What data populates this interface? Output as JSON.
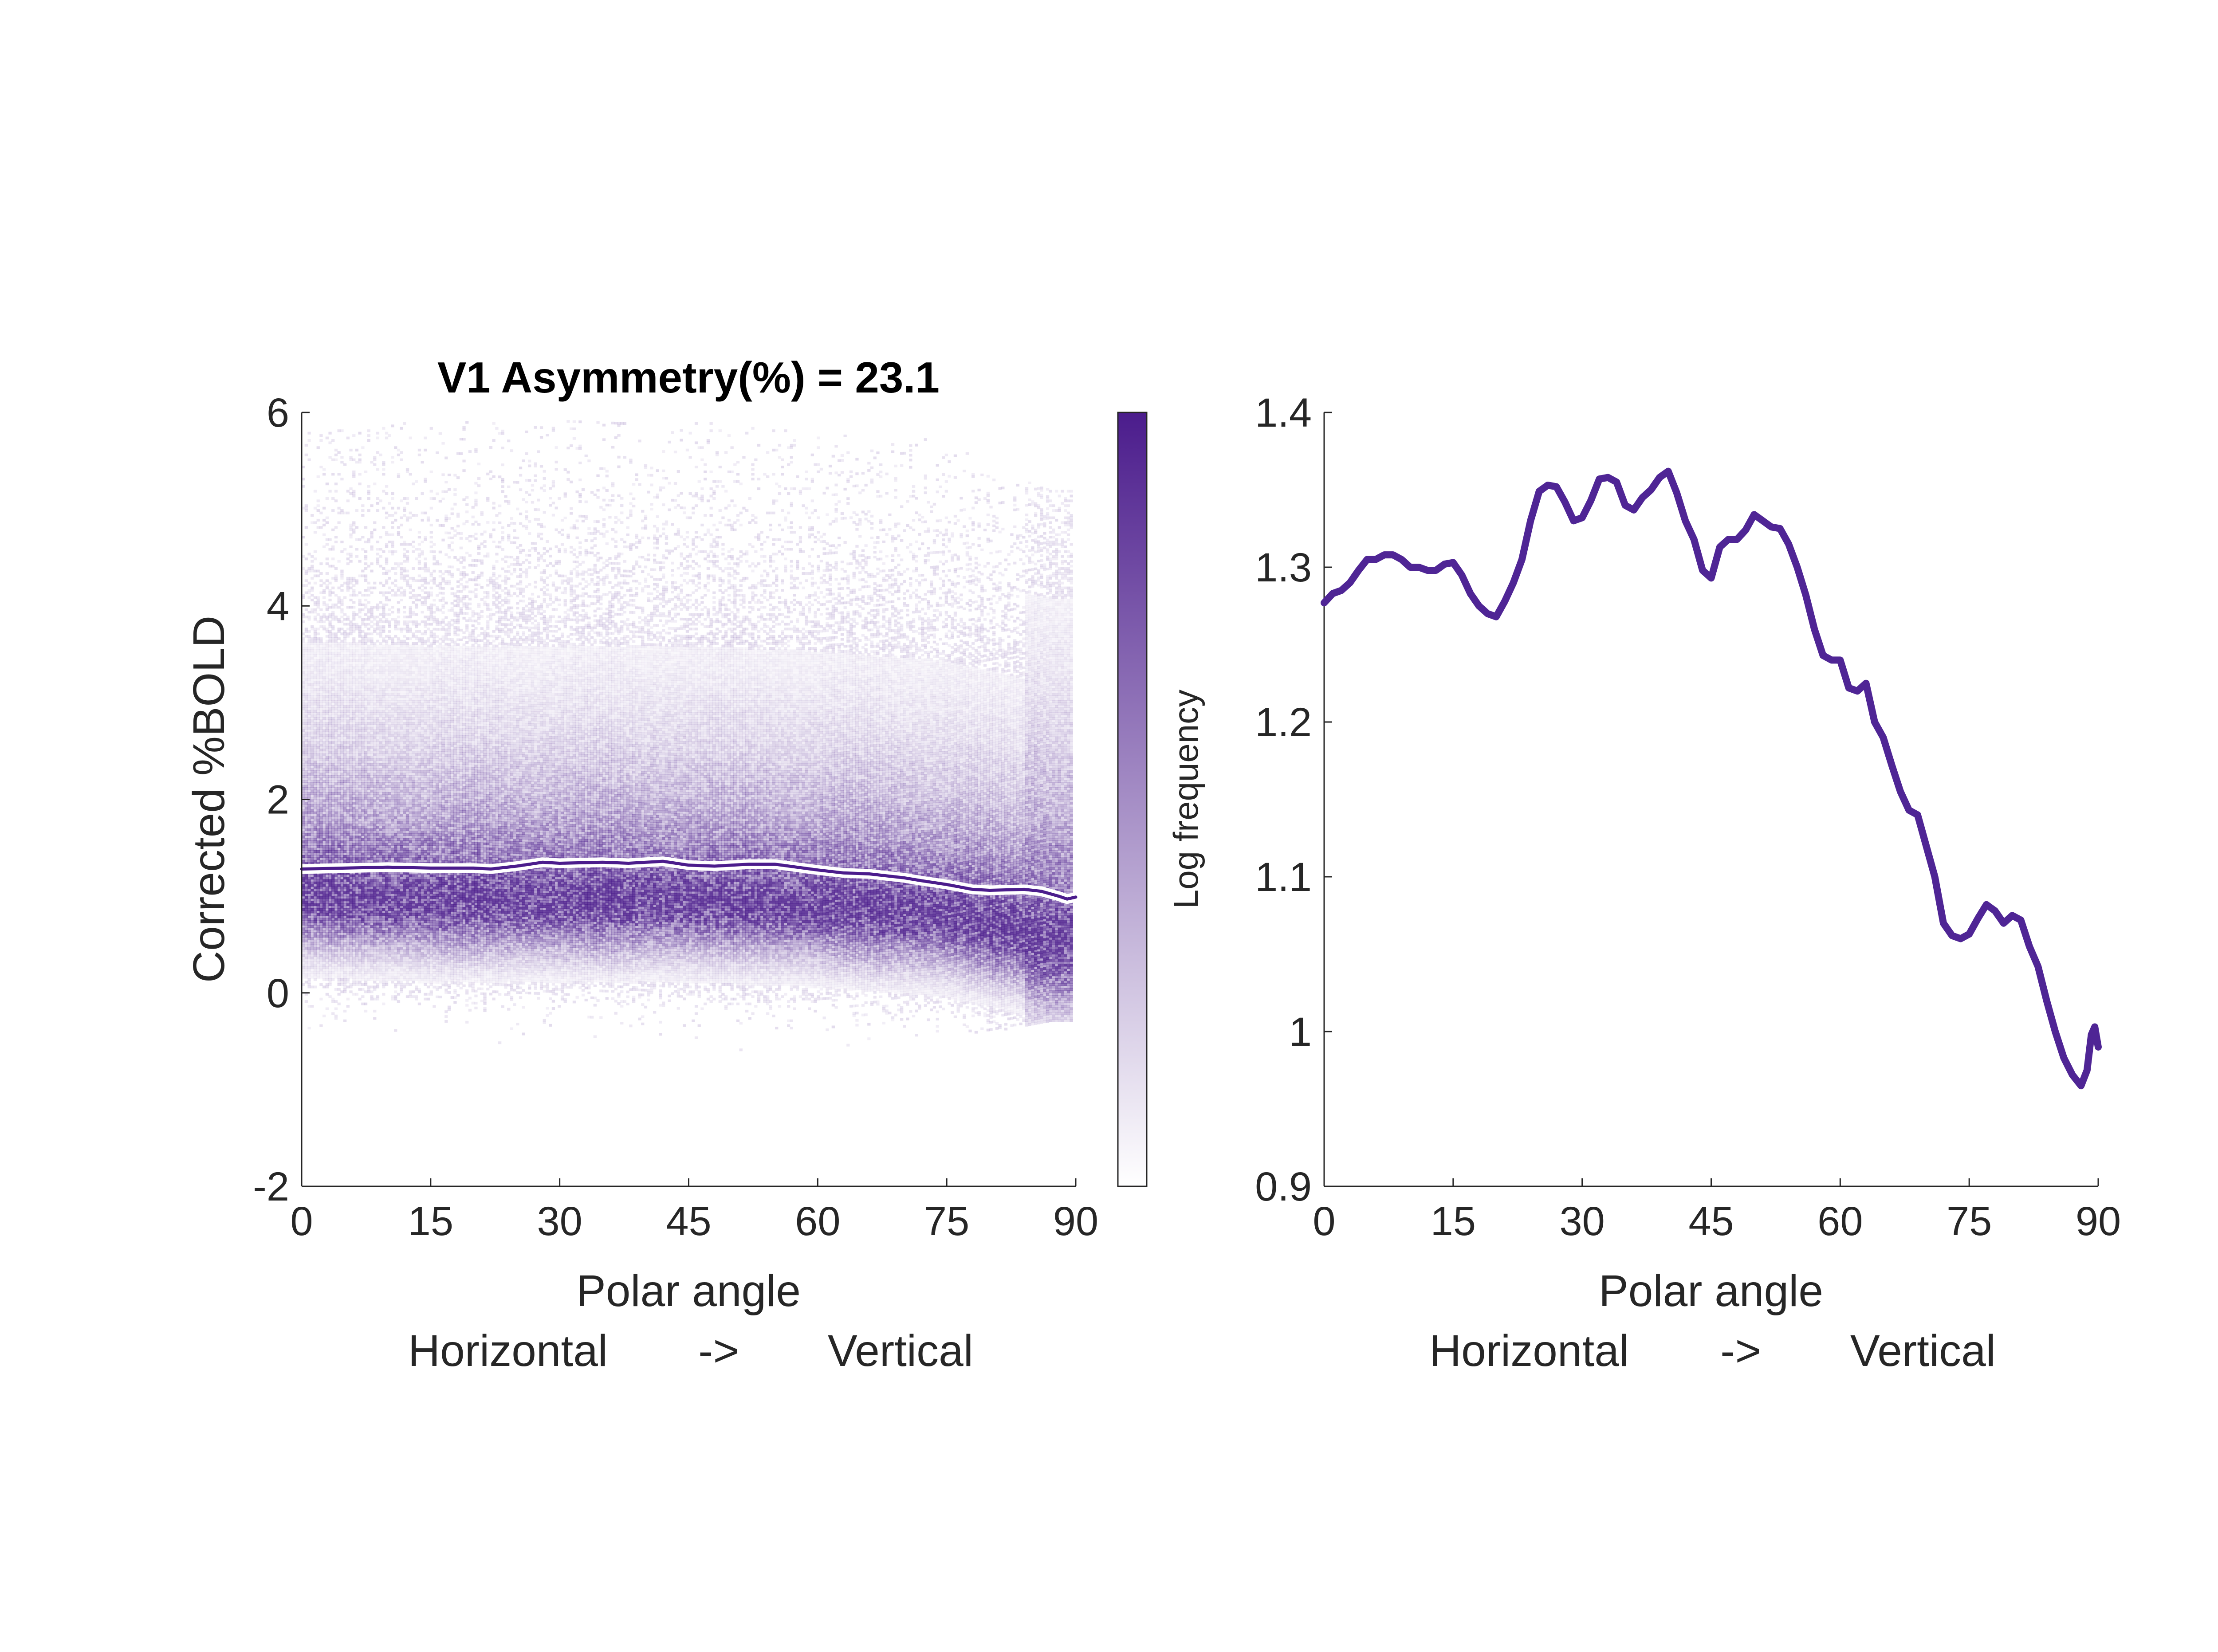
{
  "colors": {
    "accent": "#4b1c8c",
    "line": "#4f2595",
    "axis": "#262626",
    "mean_line_outline": "#ffffff"
  },
  "chart_data": [
    {
      "type": "heatmap",
      "title": "V1 Asymmetry(%) = 23.1",
      "ylabel": "Corrected %BOLD",
      "xlabel": "Polar angle",
      "xlabel2": [
        "Horizontal",
        "->",
        "Vertical"
      ],
      "xlim": [
        0,
        90
      ],
      "ylim": [
        -2,
        6
      ],
      "xticks": [
        "0",
        "15",
        "30",
        "45",
        "60",
        "75",
        "90"
      ],
      "yticks": [
        "-2",
        "0",
        "2",
        "4",
        "6"
      ],
      "colorbar_label": "Log frequency",
      "colormap": [
        "#ffffff",
        "#4b1c8c"
      ],
      "density_profile": {
        "x": [
          0,
          15,
          30,
          45,
          60,
          75,
          87,
          90
        ],
        "center": [
          1.05,
          1.0,
          1.0,
          1.0,
          0.95,
          0.85,
          0.6,
          0.6
        ],
        "lower_extent": [
          -0.5,
          -0.5,
          -0.55,
          -0.6,
          -0.6,
          -0.5,
          -0.3,
          -0.3
        ],
        "upper_extent": [
          5.8,
          5.9,
          5.9,
          5.9,
          5.8,
          5.7,
          5.2,
          5.2
        ]
      },
      "mean_line": {
        "x": [
          0,
          5,
          10,
          15,
          20,
          22,
          25,
          28,
          30,
          35,
          38,
          42,
          45,
          48,
          52,
          55,
          60,
          63,
          66,
          70,
          72,
          75,
          78,
          80,
          84,
          86,
          88,
          89,
          90
        ],
        "y": [
          1.28,
          1.29,
          1.3,
          1.29,
          1.29,
          1.28,
          1.31,
          1.35,
          1.34,
          1.35,
          1.34,
          1.36,
          1.32,
          1.31,
          1.33,
          1.33,
          1.27,
          1.24,
          1.23,
          1.19,
          1.16,
          1.12,
          1.07,
          1.06,
          1.07,
          1.05,
          1.0,
          0.97,
          0.99
        ]
      }
    },
    {
      "type": "line",
      "xlabel": "Polar angle",
      "xlabel2": [
        "Horizontal",
        "->",
        "Vertical"
      ],
      "ylabel": "",
      "xlim": [
        0,
        90
      ],
      "ylim": [
        0.9,
        1.4
      ],
      "xticks": [
        "0",
        "15",
        "30",
        "45",
        "60",
        "75",
        "90"
      ],
      "yticks": [
        "0.9",
        "1",
        "1.1",
        "1.2",
        "1.3",
        "1.4"
      ],
      "series": [
        {
          "x": [
            0,
            1,
            2,
            3,
            4,
            5,
            6,
            7,
            8,
            9,
            10,
            11,
            12,
            13,
            14,
            15,
            16,
            17,
            18,
            19,
            20,
            21,
            22,
            23,
            24,
            25,
            26,
            27,
            28,
            29,
            30,
            31,
            32,
            33,
            34,
            35,
            36,
            37,
            38,
            39,
            40,
            41,
            42,
            43,
            44,
            45,
            46,
            47,
            48,
            49,
            50,
            51,
            52,
            53,
            54,
            55,
            56,
            57,
            58,
            59,
            60,
            61,
            62,
            63,
            64,
            65,
            66,
            67,
            68,
            69,
            70,
            71,
            72,
            73,
            74,
            75,
            76,
            77,
            78,
            79,
            80,
            81,
            82,
            83,
            84,
            85,
            86,
            87,
            88,
            88.7,
            89.2,
            89.6,
            90
          ],
          "y": [
            1.277,
            1.283,
            1.285,
            1.29,
            1.298,
            1.305,
            1.305,
            1.308,
            1.308,
            1.305,
            1.3,
            1.3,
            1.298,
            1.298,
            1.302,
            1.303,
            1.295,
            1.283,
            1.275,
            1.27,
            1.268,
            1.278,
            1.29,
            1.305,
            1.33,
            1.349,
            1.353,
            1.352,
            1.342,
            1.33,
            1.332,
            1.343,
            1.357,
            1.358,
            1.355,
            1.34,
            1.337,
            1.345,
            1.35,
            1.358,
            1.362,
            1.348,
            1.33,
            1.318,
            1.298,
            1.293,
            1.313,
            1.318,
            1.318,
            1.324,
            1.334,
            1.33,
            1.326,
            1.325,
            1.315,
            1.3,
            1.282,
            1.26,
            1.243,
            1.24,
            1.24,
            1.222,
            1.22,
            1.225,
            1.2,
            1.19,
            1.172,
            1.155,
            1.143,
            1.14,
            1.12,
            1.1,
            1.07,
            1.062,
            1.06,
            1.063,
            1.073,
            1.082,
            1.078,
            1.07,
            1.075,
            1.072,
            1.055,
            1.042,
            1.02,
            1.0,
            0.983,
            0.972,
            0.965,
            0.975,
            0.998,
            1.003,
            0.99
          ]
        }
      ]
    }
  ]
}
